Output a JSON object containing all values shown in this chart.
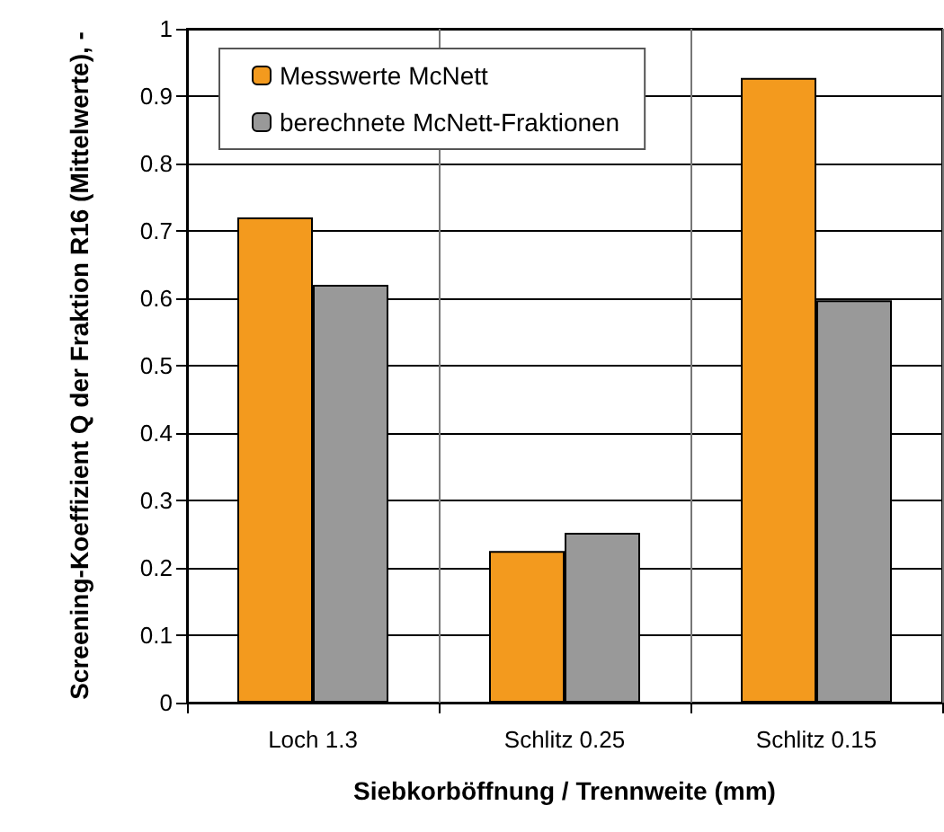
{
  "chart_data": {
    "type": "bar",
    "xlabel": "Siebkorböffnung / Trennweite (mm)",
    "ylabel": "Screening-Koeffizient Q der Fraktion R16 (Mittelwerte), -",
    "categories": [
      "Loch 1.3",
      "Schlitz 0.25",
      "Schlitz 0.15"
    ],
    "series": [
      {
        "name": "Messwerte McNett",
        "color": "#f39a1e",
        "values": [
          0.72,
          0.225,
          0.927
        ]
      },
      {
        "name": "berechnete McNett-Fraktionen",
        "color": "#999999",
        "values": [
          0.62,
          0.252,
          0.597
        ]
      }
    ],
    "ylim": [
      0,
      1
    ],
    "yticks": [
      0,
      0.1,
      0.2,
      0.3,
      0.4,
      0.5,
      0.6,
      0.7,
      0.8,
      0.9,
      1
    ],
    "grid": true,
    "legend": "top left"
  }
}
